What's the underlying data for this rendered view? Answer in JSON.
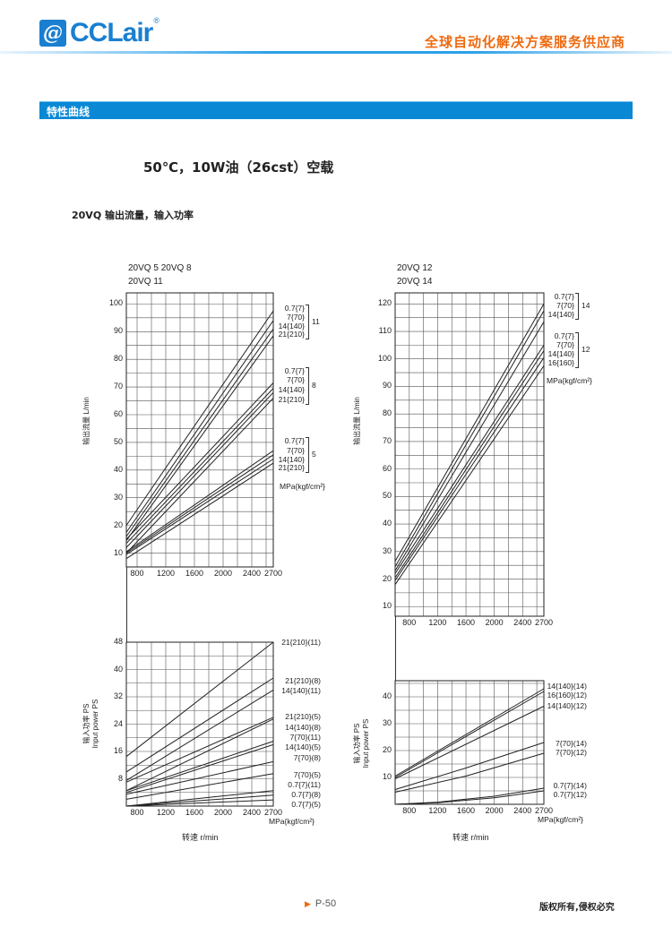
{
  "header": {
    "logo_text": "CCLair",
    "logo_mark": "@",
    "logo_reg": "®",
    "slogan": "全球自动化解决方案服务供应商"
  },
  "section": {
    "label": "特性曲线"
  },
  "title": "50℃，10W油（26cst）空载",
  "subtitle": "20VQ 输出流量，输入功率",
  "footer": {
    "page": "P-50",
    "copyright": "版权所有,侵权必究"
  },
  "colors": {
    "brand_blue": "#0a88d4",
    "accent_orange": "#ee6a10",
    "line": "#222222"
  },
  "chart_data": [
    {
      "id": "left-flow",
      "type": "line",
      "models": [
        "20VQ 5  20VQ 8",
        "20VQ 11"
      ],
      "ylabel": "输出流量  L/min",
      "xlim": [
        650,
        2700
      ],
      "ylim": [
        5,
        104
      ],
      "xticks": [
        800,
        1200,
        1600,
        2000,
        2400,
        2700
      ],
      "yticks": [
        10,
        20,
        30,
        40,
        50,
        60,
        70,
        80,
        90,
        100
      ],
      "grid": true,
      "unit_label": "MPa{kgf/cm²}",
      "groups": [
        {
          "name": "11",
          "labels": [
            "0.7{7}",
            "7{70}",
            "14{140}",
            "21{210}"
          ]
        },
        {
          "name": "8",
          "labels": [
            "0.7{7}",
            "7{70}",
            "14{140}",
            "21{210}"
          ]
        },
        {
          "name": "5",
          "labels": [
            "0.7{7}",
            "7{70}",
            "14{140}",
            "21{210}"
          ]
        }
      ],
      "series": [
        {
          "x": [
            650,
            2700
          ],
          "y": [
            20,
            97.5
          ]
        },
        {
          "x": [
            650,
            2700
          ],
          "y": [
            17.5,
            94
          ]
        },
        {
          "x": [
            650,
            2700
          ],
          "y": [
            16,
            91
          ]
        },
        {
          "x": [
            650,
            2700
          ],
          "y": [
            14.5,
            88.5
          ]
        },
        {
          "x": [
            650,
            2700
          ],
          "y": [
            15,
            71.5
          ]
        },
        {
          "x": [
            650,
            2700
          ],
          "y": [
            13.5,
            69.5
          ]
        },
        {
          "x": [
            650,
            2700
          ],
          "y": [
            12,
            68
          ]
        },
        {
          "x": [
            650,
            2700
          ],
          "y": [
            10,
            66
          ]
        },
        {
          "x": [
            650,
            2700
          ],
          "y": [
            10.5,
            47
          ]
        },
        {
          "x": [
            650,
            2700
          ],
          "y": [
            10,
            45.5
          ]
        },
        {
          "x": [
            650,
            2700
          ],
          "y": [
            9.5,
            44
          ]
        },
        {
          "x": [
            650,
            2700
          ],
          "y": [
            8,
            42.5
          ]
        }
      ]
    },
    {
      "id": "left-power",
      "type": "line",
      "ylabel": "输入功率 PS",
      "ylabel2": "Input power PS",
      "xlabel": "转速  r/min",
      "xlim": [
        650,
        2700
      ],
      "ylim": [
        0,
        48
      ],
      "xticks": [
        800,
        1200,
        1600,
        2000,
        2400,
        2700
      ],
      "yticks": [
        8,
        16,
        24,
        32,
        40,
        48
      ],
      "grid": true,
      "unit_label": "MPa{kgf/cm²}",
      "line_labels": [
        "21{210}(11)",
        "21{210}(8)",
        "14{140}(11)",
        "21{210}(5)",
        "14{140}(8)",
        "7{70}(11)",
        "14{140}(5)",
        "7{70}(8)",
        "7{70}(5)",
        "0.7{7}(11)",
        "0.7{7}(8)",
        "0.7{7}(5)"
      ],
      "series": [
        {
          "name": "21{210}(11)",
          "x": [
            650,
            2700
          ],
          "y": [
            14.5,
            48
          ]
        },
        {
          "name": "21{210}(8)",
          "x": [
            650,
            2700
          ],
          "y": [
            10,
            37.5
          ]
        },
        {
          "name": "14{140}(11)",
          "x": [
            650,
            2700
          ],
          "y": [
            7.5,
            34
          ]
        },
        {
          "name": "21{210}(5)",
          "x": [
            650,
            2700
          ],
          "y": [
            7,
            26
          ]
        },
        {
          "name": "14{140}(8)",
          "x": [
            650,
            2700
          ],
          "y": [
            4.5,
            25.5
          ]
        },
        {
          "name": "7{70}(11)",
          "x": [
            650,
            2700
          ],
          "y": [
            4.5,
            19
          ]
        },
        {
          "name": "14{140}(5)",
          "x": [
            650,
            2700
          ],
          "y": [
            4,
            18
          ]
        },
        {
          "name": "7{70}(8)",
          "x": [
            650,
            2700
          ],
          "y": [
            3.5,
            13
          ]
        },
        {
          "name": "7{70}(5)",
          "x": [
            650,
            2700
          ],
          "y": [
            2,
            9.5
          ]
        },
        {
          "name": "0.7{7}(11)",
          "x": [
            650,
            1200,
            2000,
            2700
          ],
          "y": [
            0,
            1.2,
            3,
            4.5
          ]
        },
        {
          "name": "0.7{7}(8)",
          "x": [
            650,
            1200,
            2000,
            2700
          ],
          "y": [
            0,
            0.9,
            2.1,
            3.2
          ]
        },
        {
          "name": "0.7{7}(5)",
          "x": [
            650,
            1200,
            2000,
            2700
          ],
          "y": [
            0,
            0.5,
            1.2,
            1.8
          ]
        }
      ]
    },
    {
      "id": "right-flow",
      "type": "line",
      "models": [
        "20VQ 12",
        "20VQ 14"
      ],
      "ylabel": "输出流量  L/min",
      "xlim": [
        600,
        2700
      ],
      "ylim": [
        6.5,
        124
      ],
      "xticks": [
        800,
        1200,
        1600,
        2000,
        2400,
        2700
      ],
      "yticks": [
        10,
        20,
        30,
        40,
        50,
        60,
        70,
        80,
        90,
        100,
        110,
        120
      ],
      "grid": true,
      "unit_label": "MPa{kgf/cm²}",
      "groups": [
        {
          "name": "14",
          "labels": [
            "0.7{7}",
            "7{70}",
            "14{140}"
          ]
        },
        {
          "name": "12",
          "labels": [
            "0.7{7}",
            "7{70}",
            "14{140}",
            "16{160}"
          ]
        }
      ],
      "series": [
        {
          "x": [
            600,
            2700
          ],
          "y": [
            26.5,
            120
          ]
        },
        {
          "x": [
            600,
            2700
          ],
          "y": [
            24.5,
            117.5
          ]
        },
        {
          "x": [
            600,
            2700
          ],
          "y": [
            23,
            113.5
          ]
        },
        {
          "x": [
            600,
            2700
          ],
          "y": [
            22,
            105
          ]
        },
        {
          "x": [
            600,
            2700
          ],
          "y": [
            20.5,
            103
          ]
        },
        {
          "x": [
            600,
            2700
          ],
          "y": [
            19.5,
            100.5
          ]
        },
        {
          "x": [
            600,
            2700
          ],
          "y": [
            18,
            97.5
          ]
        }
      ]
    },
    {
      "id": "right-power",
      "type": "line",
      "ylabel": "输入功率  PS",
      "ylabel2": "Input power PS",
      "xlabel": "转速  r/min",
      "xlim": [
        600,
        2700
      ],
      "ylim": [
        0,
        46
      ],
      "xticks": [
        800,
        1200,
        1600,
        2000,
        2400,
        2700
      ],
      "yticks": [
        10,
        20,
        30,
        40
      ],
      "grid": true,
      "unit_label": "MPa{kgf/cm²}",
      "line_labels": [
        "14{140}(14)",
        "16{160}(12)",
        "14{140}(12)",
        "7{70}(14)",
        "7{70}(12)",
        "0.7{7}(14)",
        "0.7{7}(12)"
      ],
      "series": [
        {
          "name": "14{140}(14)",
          "x": [
            600,
            2700
          ],
          "y": [
            10.5,
            43
          ]
        },
        {
          "name": "16{160}(12)",
          "x": [
            600,
            2700
          ],
          "y": [
            10,
            42
          ]
        },
        {
          "name": "14{140}(12)",
          "x": [
            600,
            2700
          ],
          "y": [
            9.5,
            36.5
          ]
        },
        {
          "name": "7{70}(14)",
          "x": [
            600,
            1600,
            2700
          ],
          "y": [
            5.5,
            13.5,
            23
          ]
        },
        {
          "name": "7{70}(12)",
          "x": [
            600,
            1600,
            2700
          ],
          "y": [
            4.5,
            10.5,
            19
          ]
        },
        {
          "name": "0.7{7}(14)",
          "x": [
            600,
            1200,
            2000,
            2700
          ],
          "y": [
            0,
            0.8,
            3,
            6
          ]
        },
        {
          "name": "0.7{7}(12)",
          "x": [
            600,
            1200,
            2000,
            2700
          ],
          "y": [
            0,
            0.6,
            2.4,
            5
          ]
        }
      ]
    }
  ]
}
